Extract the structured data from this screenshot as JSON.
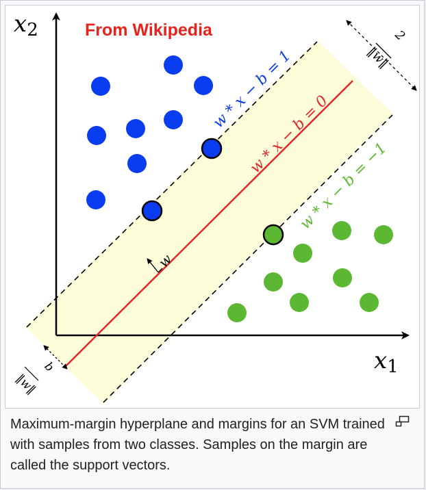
{
  "watermark": "From Wikipedia",
  "axes": {
    "x_symbol": "x",
    "x_subscript": "1",
    "y_symbol": "x",
    "y_subscript": "2"
  },
  "labels": {
    "upper_margin": "w * x − b = 1",
    "hyperplane": "w * x − b = 0",
    "lower_margin": "w * x − b = −1",
    "normal_vector": "w",
    "margin_width_numerator": "2",
    "margin_width_denominator": "‖w‖",
    "offset_numerator": "b",
    "offset_denominator": "‖w‖"
  },
  "colors": {
    "class_blue": "#0a3cf0",
    "class_green": "#5cb832",
    "hyperplane": "#e3262a",
    "margin_band": "#fdfcd9",
    "watermark": "#e8221c"
  },
  "icons": {
    "magnify": "magnify-clip-icon"
  },
  "caption": "Maximum-margin hyperplane and margins for an SVM trained with samples from two classes. Samples on the margin are called the support vectors."
}
